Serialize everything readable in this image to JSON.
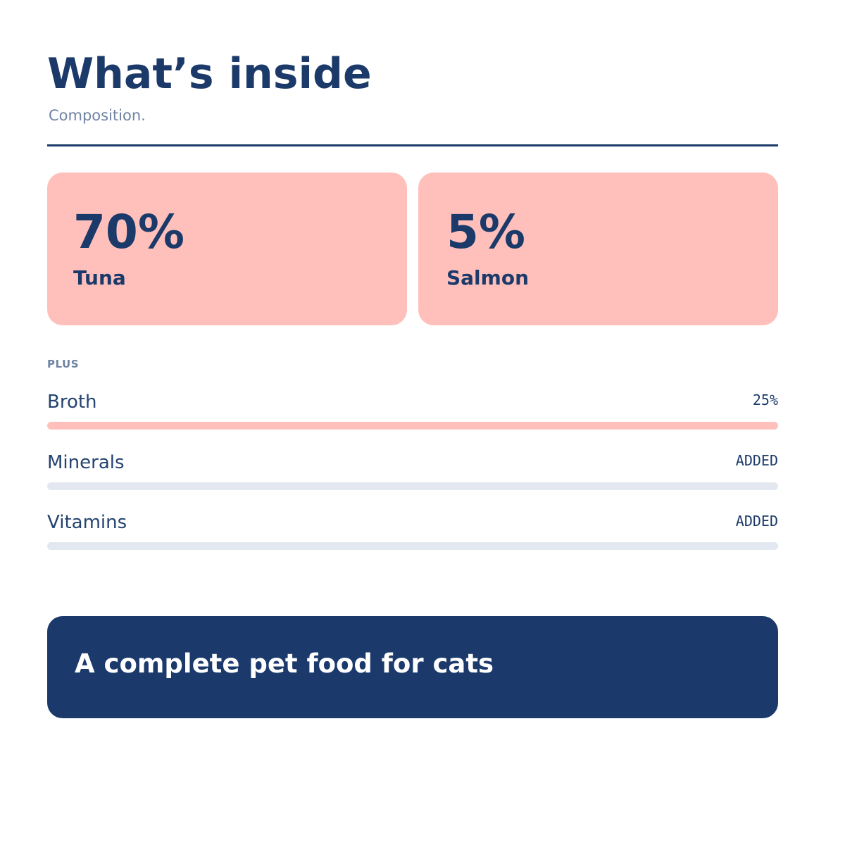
{
  "header": {
    "title": "What’s inside",
    "subtitle": "Composition."
  },
  "main_ingredients": [
    {
      "value": "70%",
      "label": "Tuna"
    },
    {
      "value": "5%",
      "label": "Salmon"
    }
  ],
  "plus_section": {
    "label": "PLUS",
    "items": [
      {
        "name": "Broth",
        "value": "25%",
        "fill_fraction": 1.0
      },
      {
        "name": "Minerals",
        "value": "ADDED",
        "fill_fraction": 0
      },
      {
        "name": "Vitamins",
        "value": "ADDED",
        "fill_fraction": 0
      }
    ]
  },
  "banner": {
    "text": "A complete pet food for cats"
  },
  "colors": {
    "navy": "#1b3a69",
    "accent_pink": "#ffc0bc",
    "muted_text": "#6f83a2",
    "track_gray": "#e3e8f0"
  }
}
